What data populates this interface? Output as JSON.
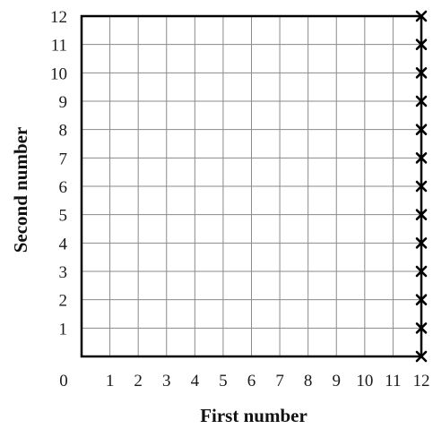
{
  "chart_data": {
    "type": "scatter",
    "title": "",
    "xlabel": "First number",
    "ylabel": "Second number",
    "xlim": [
      0,
      12
    ],
    "ylim": [
      0,
      12
    ],
    "x_ticks": [
      "0",
      "1",
      "2",
      "3",
      "4",
      "5",
      "6",
      "7",
      "8",
      "9",
      "10",
      "11",
      "12"
    ],
    "y_ticks": [
      "1",
      "2",
      "3",
      "4",
      "5",
      "6",
      "7",
      "8",
      "9",
      "10",
      "11",
      "12"
    ],
    "grid": true,
    "marker": "x",
    "points": [
      {
        "x": 12,
        "y": 0
      },
      {
        "x": 12,
        "y": 1
      },
      {
        "x": 12,
        "y": 2
      },
      {
        "x": 12,
        "y": 3
      },
      {
        "x": 12,
        "y": 4
      },
      {
        "x": 12,
        "y": 5
      },
      {
        "x": 12,
        "y": 6
      },
      {
        "x": 12,
        "y": 7
      },
      {
        "x": 12,
        "y": 8
      },
      {
        "x": 12,
        "y": 9
      },
      {
        "x": 12,
        "y": 10
      },
      {
        "x": 12,
        "y": 11
      },
      {
        "x": 12,
        "y": 12
      }
    ],
    "colors": {
      "grid": "#8a8a8a",
      "frame": "#000000",
      "marker": "#000000",
      "text": "#1a1a1a"
    }
  }
}
